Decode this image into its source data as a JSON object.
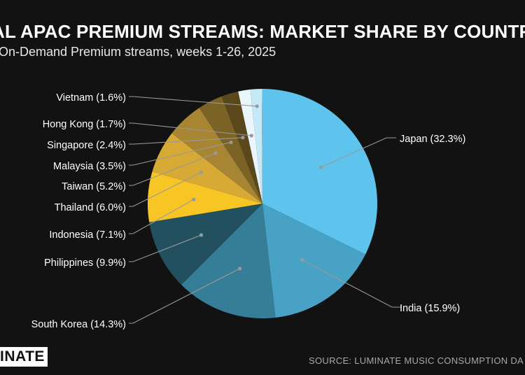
{
  "title": "AL APAC PREMIUM STREAMS: MARKET SHARE BY COUNTRY",
  "subtitle": "On-Demand Premium streams, weeks 1-26, 2025",
  "logo_text": "INATE",
  "source": "SOURCE: LUMINATE MUSIC CONSUMPTION DA",
  "chart_data": {
    "type": "pie",
    "slices": [
      {
        "name": "Japan",
        "label": "Japan (32.3%)",
        "value": 32.3,
        "color": "#5ec4ed"
      },
      {
        "name": "India",
        "label": "India (15.9%)",
        "value": 15.9,
        "color": "#48a2c6"
      },
      {
        "name": "South Korea",
        "label": "South Korea (14.3%)",
        "value": 14.3,
        "color": "#367d98"
      },
      {
        "name": "Philippines",
        "label": "Philippines (9.9%)",
        "value": 9.9,
        "color": "#23505f"
      },
      {
        "name": "Indonesia",
        "label": "Indonesia (7.1%)",
        "value": 7.1,
        "color": "#f7c625"
      },
      {
        "name": "Thailand",
        "label": "Thailand (6.0%)",
        "value": 6.0,
        "color": "#d7a935"
      },
      {
        "name": "Taiwan",
        "label": "Taiwan (5.2%)",
        "value": 5.2,
        "color": "#a78532"
      },
      {
        "name": "Malaysia",
        "label": "Malaysia (3.5%)",
        "value": 3.5,
        "color": "#7a6325"
      },
      {
        "name": "Singapore",
        "label": "Singapore (2.4%)",
        "value": 2.4,
        "color": "#5a481c"
      },
      {
        "name": "Hong Kong",
        "label": "Hong Kong (1.7%)",
        "value": 1.7,
        "color": "#e9f6fb"
      },
      {
        "name": "Vietnam",
        "label": "Vietnam (1.6%)",
        "value": 1.6,
        "color": "#c5e9f6"
      }
    ],
    "remainder_colors": [
      "#a8dcf1",
      "#8ed1ec"
    ],
    "start_angle": "12 o'clock",
    "direction": "clockwise"
  }
}
